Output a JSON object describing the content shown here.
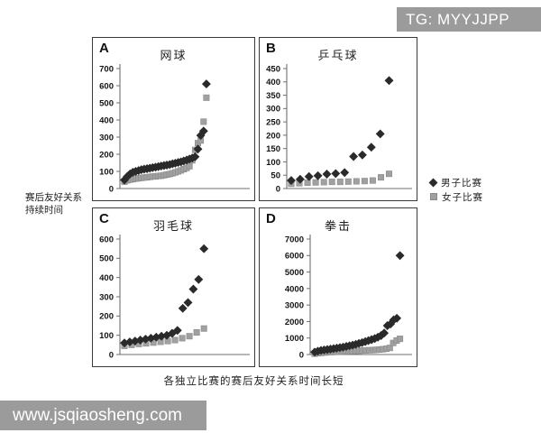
{
  "watermarks": {
    "top": "TG: MYYJJPP",
    "bottom": "www.jsqiaosheng.com"
  },
  "figure": {
    "y_axis_label_line1": "赛后友好关系",
    "y_axis_label_line2": "持续时间",
    "caption": "各独立比赛的赛后友好关系时间长短",
    "legend": [
      {
        "marker": "diamond",
        "label": "男子比赛"
      },
      {
        "marker": "square",
        "label": "女子比赛"
      }
    ]
  },
  "colors": {
    "men": "#2b292a",
    "women": "#a0a0a0",
    "women_edge": "#8a8a8a",
    "axis": "#6f6f6f",
    "tick_text": "#141414",
    "panel_border": "#3a3a3a",
    "watermark_bg": "#9b9b9b"
  },
  "chart_data": [
    {
      "panel": "A",
      "type": "scatter",
      "title": "网球",
      "ylim": [
        0,
        700
      ],
      "ytick_step": 100,
      "x_extent": 0.7,
      "grid": false,
      "series": [
        {
          "name": "男子比赛",
          "marker": "diamond",
          "values": [
            50,
            70,
            85,
            95,
            100,
            105,
            110,
            113,
            116,
            119,
            122,
            125,
            128,
            131,
            134,
            137,
            140,
            144,
            148,
            152,
            156,
            161,
            166,
            172,
            178,
            185,
            230,
            310,
            335,
            610
          ]
        },
        {
          "name": "女子比赛",
          "marker": "square",
          "values": [
            40,
            48,
            52,
            55,
            58,
            60,
            62,
            64,
            66,
            68,
            70,
            71,
            73,
            75,
            78,
            81,
            85,
            89,
            94,
            100,
            106,
            113,
            120,
            130,
            165,
            225,
            265,
            280,
            390,
            530
          ]
        }
      ]
    },
    {
      "panel": "B",
      "type": "scatter",
      "title": "乒乓球",
      "ylim": [
        0,
        450
      ],
      "ytick_step": 50,
      "x_extent": 0.86,
      "grid": false,
      "series": [
        {
          "name": "男子比赛",
          "marker": "diamond",
          "values": [
            30,
            35,
            45,
            48,
            54,
            56,
            60,
            120,
            126,
            155,
            205,
            405
          ]
        },
        {
          "name": "女子比赛",
          "marker": "square",
          "values": [
            18,
            20,
            22,
            23,
            24,
            25,
            25,
            26,
            27,
            28,
            30,
            42,
            55
          ]
        }
      ]
    },
    {
      "panel": "C",
      "type": "scatter",
      "title": "羽毛球",
      "ylim": [
        0,
        600
      ],
      "ytick_step": 100,
      "x_extent": 0.68,
      "grid": false,
      "series": [
        {
          "name": "男子比赛",
          "marker": "diamond",
          "values": [
            60,
            65,
            70,
            75,
            80,
            85,
            90,
            95,
            100,
            110,
            125,
            240,
            270,
            340,
            390,
            550
          ]
        },
        {
          "name": "女子比赛",
          "marker": "square",
          "values": [
            45,
            50,
            55,
            58,
            62,
            66,
            70,
            75,
            85,
            95,
            115,
            135
          ]
        }
      ]
    },
    {
      "panel": "D",
      "type": "scatter",
      "title": "拳击",
      "ylim": [
        0,
        7000
      ],
      "ytick_step": 1000,
      "x_extent": 0.94,
      "grid": false,
      "series": [
        {
          "name": "男子比赛",
          "marker": "diamond",
          "values": [
            150,
            200,
            250,
            280,
            300,
            330,
            360,
            390,
            420,
            450,
            490,
            530,
            570,
            620,
            670,
            720,
            780,
            840,
            900,
            970,
            1050,
            1150,
            1300,
            1750,
            1850,
            2100,
            2200,
            6000
          ]
        },
        {
          "name": "女子比赛",
          "marker": "square",
          "values": [
            50,
            80,
            100,
            120,
            140,
            150,
            160,
            170,
            180,
            190,
            200,
            210,
            220,
            230,
            240,
            250,
            260,
            270,
            285,
            300,
            320,
            350,
            400,
            700,
            850,
            950
          ]
        }
      ]
    }
  ]
}
